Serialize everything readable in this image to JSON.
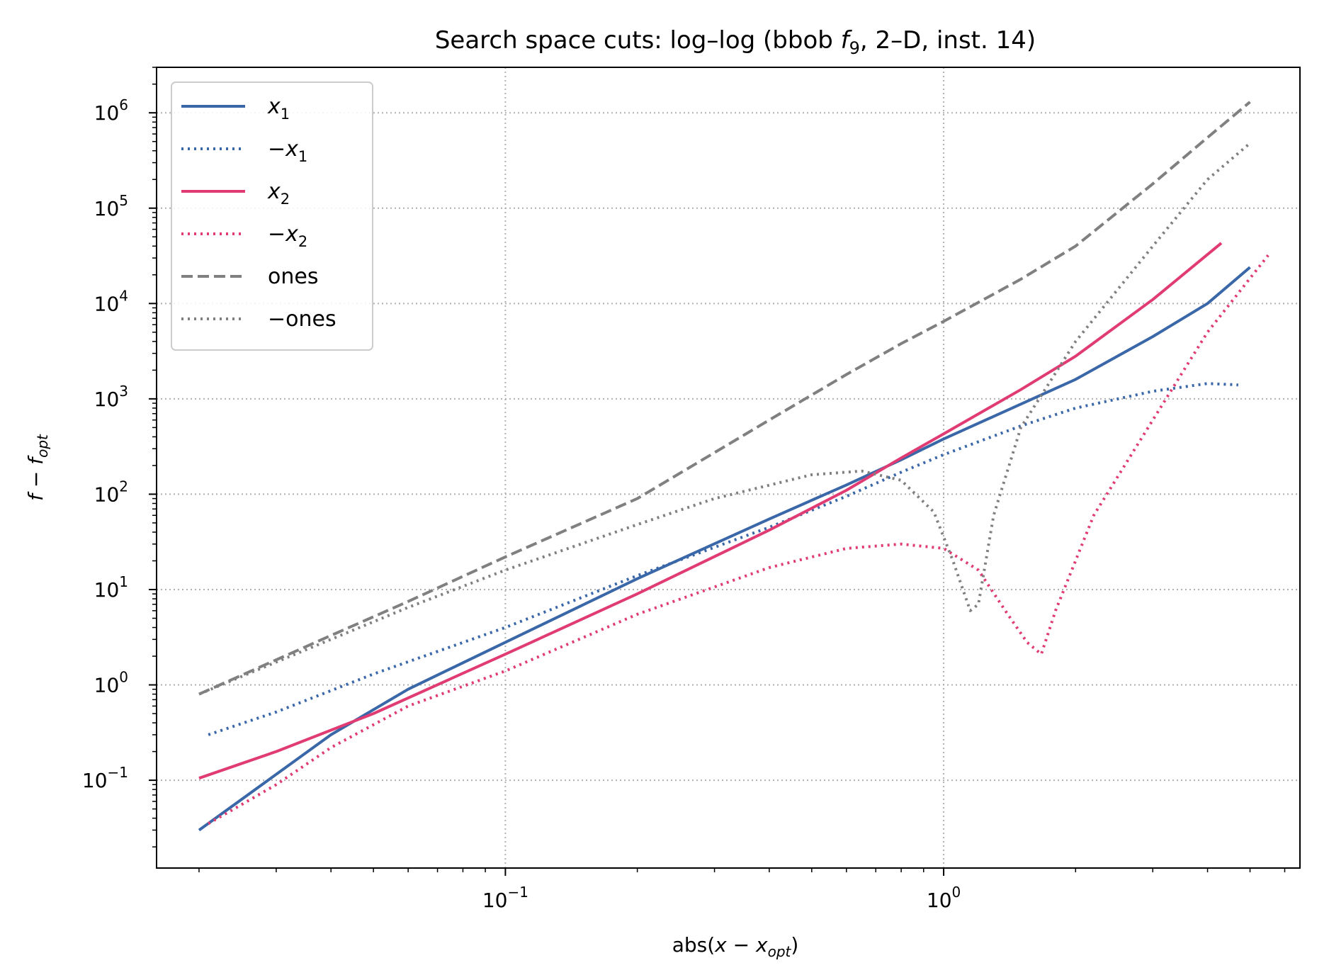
{
  "chart_data": {
    "type": "line",
    "title": "Search space cuts: log–log (bbob f9, 2–D, inst. 14)",
    "title_parts": {
      "before": "Search space cuts: log–log (bbob ",
      "f": "f",
      "f_sub": "9",
      "after": ", 2–D, inst. 14)"
    },
    "xlabel": "abs(x − x_opt)",
    "xlabel_parts": {
      "prefix": "abs(",
      "x1": "x",
      "minus": " − ",
      "x2": "x",
      "sub": "opt",
      "suffix": ")"
    },
    "ylabel": "f − f_opt",
    "ylabel_parts": {
      "f1": "f",
      "minus": " − ",
      "f2": "f",
      "sub": "opt"
    },
    "x_scale": "log",
    "y_scale": "log",
    "xlim": [
      0.016,
      6.5
    ],
    "ylim": [
      0.012,
      3000000
    ],
    "x_ticks": [
      {
        "value": 0.1,
        "base": "10",
        "exp": "−1"
      },
      {
        "value": 1,
        "base": "10",
        "exp": "0"
      }
    ],
    "y_ticks": [
      {
        "value": 0.1,
        "base": "10",
        "exp": "−1"
      },
      {
        "value": 1,
        "base": "10",
        "exp": "0"
      },
      {
        "value": 10,
        "base": "10",
        "exp": "1"
      },
      {
        "value": 100,
        "base": "10",
        "exp": "2"
      },
      {
        "value": 1000,
        "base": "10",
        "exp": "3"
      },
      {
        "value": 10000,
        "base": "10",
        "exp": "4"
      },
      {
        "value": 100000,
        "base": "10",
        "exp": "5"
      },
      {
        "value": 1000000,
        "base": "10",
        "exp": "6"
      }
    ],
    "grid": true,
    "legend_position": "top-left",
    "series": [
      {
        "name": "x1",
        "legend_prefix": "",
        "legend_var": "x",
        "legend_sub": "1",
        "color": "#3a67a8",
        "style": "solid",
        "x": [
          0.02,
          0.04,
          0.06,
          0.1,
          0.2,
          0.4,
          0.6,
          0.8,
          1.0,
          1.5,
          2.0,
          3.0,
          4.0,
          5.0
        ],
        "y": [
          0.03,
          0.3,
          0.9,
          2.8,
          13,
          55,
          125,
          230,
          380,
          880,
          1600,
          4500,
          10000,
          24000
        ]
      },
      {
        "name": "−x1",
        "legend_prefix": "−",
        "legend_var": "x",
        "legend_sub": "1",
        "color": "#3a67a8",
        "style": "dotted",
        "x": [
          0.021,
          0.03,
          0.05,
          0.1,
          0.2,
          0.4,
          0.6,
          0.8,
          1.0,
          1.5,
          2.0,
          3.0,
          4.0,
          4.7
        ],
        "y": [
          0.3,
          0.52,
          1.3,
          4,
          14,
          45,
          95,
          170,
          260,
          520,
          800,
          1200,
          1450,
          1400
        ]
      },
      {
        "name": "x2",
        "legend_prefix": "",
        "legend_var": "x",
        "legend_sub": "2",
        "color": "#e03c73",
        "style": "solid",
        "x": [
          0.02,
          0.03,
          0.05,
          0.1,
          0.2,
          0.4,
          0.6,
          0.8,
          1.0,
          1.5,
          2.0,
          3.0,
          4.3
        ],
        "y": [
          0.105,
          0.2,
          0.5,
          2.1,
          9,
          42,
          110,
          240,
          430,
          1250,
          2800,
          11000,
          43000
        ]
      },
      {
        "name": "−x2",
        "legend_prefix": "−",
        "legend_var": "x",
        "legend_sub": "2",
        "color": "#e03c73",
        "style": "dotted",
        "x": [
          0.021,
          0.03,
          0.04,
          0.06,
          0.1,
          0.2,
          0.4,
          0.6,
          0.8,
          1.0,
          1.2,
          1.4,
          1.55,
          1.67,
          1.8,
          2.2,
          3.0,
          4.0,
          5.5
        ],
        "y": [
          0.035,
          0.09,
          0.22,
          0.6,
          1.4,
          5.5,
          17,
          27,
          30,
          27,
          16,
          5.5,
          2.8,
          2.1,
          6,
          60,
          600,
          5000,
          32000
        ]
      },
      {
        "name": "ones",
        "legend_prefix": "",
        "legend_var": "",
        "legend_sub": "",
        "legend_text": "ones",
        "color": "#808080",
        "style": "dashed",
        "x": [
          0.02,
          0.04,
          0.06,
          0.1,
          0.2,
          0.4,
          0.6,
          0.8,
          1.0,
          1.5,
          2.0,
          3.0,
          4.0,
          5.0
        ],
        "y": [
          0.8,
          3.3,
          7.5,
          22,
          90,
          600,
          1800,
          3800,
          6500,
          18000,
          40000,
          180000,
          550000,
          1300000
        ]
      },
      {
        "name": "−ones",
        "legend_prefix": "",
        "legend_var": "",
        "legend_sub": "",
        "legend_text": "−ones",
        "color": "#808080",
        "style": "dotted",
        "x": [
          0.02,
          0.04,
          0.06,
          0.1,
          0.2,
          0.3,
          0.5,
          0.65,
          0.8,
          0.95,
          1.05,
          1.15,
          1.2,
          1.3,
          1.5,
          2.0,
          3.0,
          4.0,
          5.0
        ],
        "y": [
          0.8,
          3.0,
          6.5,
          16,
          48,
          90,
          160,
          175,
          140,
          65,
          20,
          6,
          7,
          60,
          500,
          4000,
          40000,
          200000,
          480000
        ]
      }
    ]
  }
}
